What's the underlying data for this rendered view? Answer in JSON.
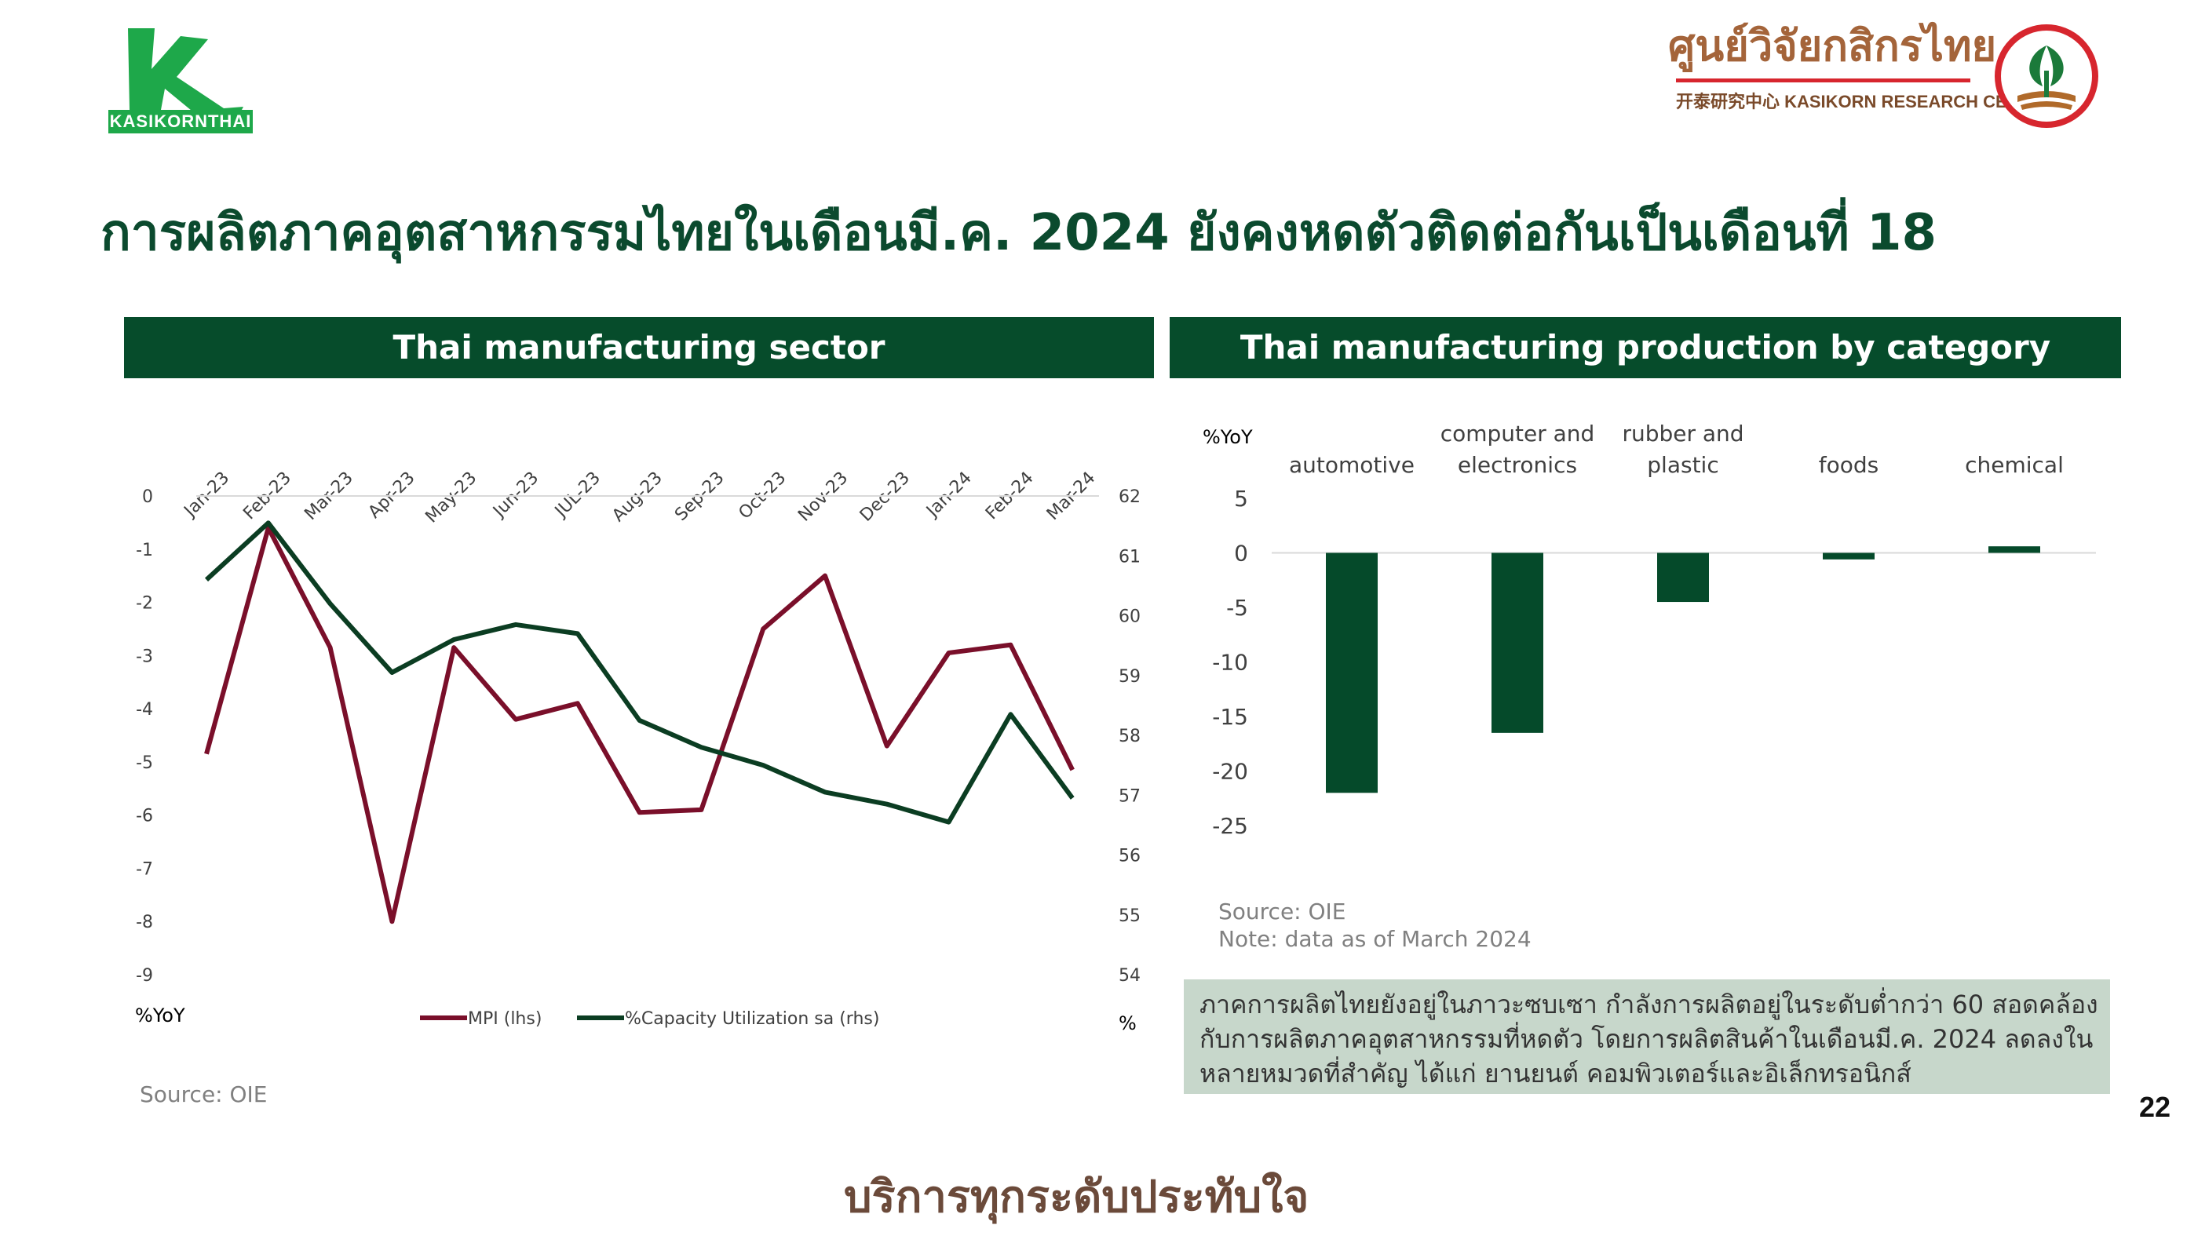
{
  "logo_left": {
    "badge_text": "KASIKORNTHAI",
    "brand_color": "#1ea84a"
  },
  "logo_right": {
    "thai_name": "ศูนย์วิจัยกสิกรไทย",
    "english_name": "开泰研究中心 KASIKORN RESEARCH CENTER",
    "brand_color": "#d7262e"
  },
  "headline": "การผลิตภาคอุตสาหกรรมไทยในเดือนมี.ค. 2024 ยังคงหดตัวติดต่อกันเป็นเดือนที่ 18",
  "colors": {
    "header_bg": "#064c2b",
    "mpi": "#7a0f2a",
    "capacity": "#0b3d22",
    "bar": "#054a2a",
    "summary_bg": "#c7d7cb"
  },
  "left_panel": {
    "header": "Thai manufacturing sector",
    "source": "Source: OIE"
  },
  "right_panel": {
    "header": "Thai manufacturing production by category",
    "source": "Source: OIE",
    "note": "Note: data as of March 2024"
  },
  "summary": "ภาคการผลิตไทยยังอยู่ในภาวะซบเซา กำลังการผลิตอยู่ในระดับต่ำกว่า 60 สอดคล้องกับการผลิตภาคอุตสาหกรรมที่หดตัว โดยการผลิตสินค้าในเดือนมี.ค. 2024 ลดลงในหลายหมวดที่สำคัญ ได้แก่ ยานยนต์ คอมพิวเตอร์และอิเล็กทรอนิกส์",
  "page_number": "22",
  "slogan": "บริการทุกระดับประทับใจ",
  "chart_data": [
    {
      "type": "line",
      "categories": [
        "Jan-23",
        "Feb-23",
        "Mar-23",
        "Apr-23",
        "May-23",
        "Jun-23",
        "JUL-23",
        "Aug-23",
        "Sep-23",
        "Oct-23",
        "Nov-23",
        "Dec-23",
        "Jan-24",
        "Feb-24",
        "Mar-24"
      ],
      "series": [
        {
          "name": "MPI (lhs)",
          "axis": "left",
          "values": [
            -4.85,
            -0.6,
            -2.85,
            -8.0,
            -2.85,
            -4.2,
            -3.9,
            -5.95,
            -5.9,
            -2.5,
            -1.5,
            -4.7,
            -2.95,
            -2.8,
            -5.15
          ]
        },
        {
          "name": "%Capacity Utilization sa (rhs)",
          "axis": "right",
          "values": [
            60.6,
            61.55,
            60.2,
            59.05,
            59.6,
            59.85,
            59.7,
            58.25,
            57.8,
            57.5,
            57.05,
            56.85,
            56.55,
            58.35,
            56.95
          ]
        }
      ],
      "yaxis_left": {
        "label": "%YoY",
        "ylim": [
          -9,
          0
        ],
        "ticks": [
          0,
          -1,
          -2,
          -3,
          -4,
          -5,
          -6,
          -7,
          -8,
          -9
        ]
      },
      "yaxis_right": {
        "label": "%",
        "ylim": [
          54,
          62
        ],
        "ticks": [
          62,
          61,
          60,
          59,
          58,
          57,
          56,
          55,
          54
        ]
      },
      "legend_position": "bottom"
    },
    {
      "type": "bar",
      "categories": [
        [
          "automotive"
        ],
        [
          "computer and",
          "electronics"
        ],
        [
          "rubber and",
          "plastic"
        ],
        [
          "foods"
        ],
        [
          "chemical"
        ]
      ],
      "values": [
        -22.0,
        -16.5,
        -4.5,
        -0.6,
        0.6
      ],
      "ylabel": "%YoY",
      "ylim": [
        -25,
        5
      ],
      "ticks": [
        5,
        0,
        -5,
        -10,
        -15,
        -20,
        -25
      ]
    }
  ]
}
